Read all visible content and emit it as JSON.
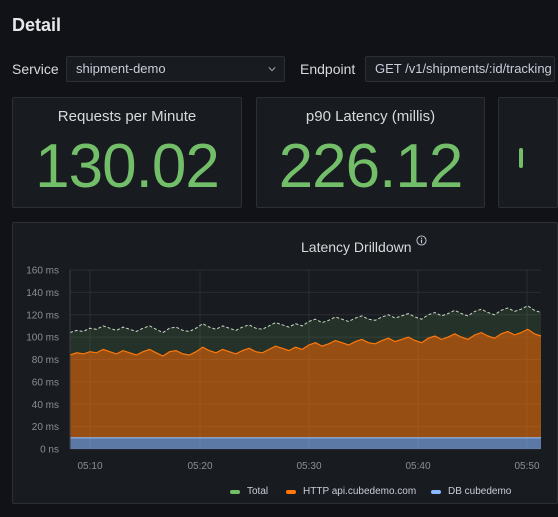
{
  "page": {
    "title": "Detail"
  },
  "filters": {
    "service_label": "Service",
    "service_value": "shipment-demo",
    "endpoint_label": "Endpoint",
    "endpoint_value": "GET /v1/shipments/:id/tracking"
  },
  "stats": [
    {
      "title": "Requests per Minute",
      "value": "130.02"
    },
    {
      "title": "p90 Latency (millis)",
      "value": "226.12"
    }
  ],
  "colors": {
    "stat_value": "#73bf69",
    "total": "#73bf69",
    "http": "#ff780a",
    "db": "#8ab8ff"
  },
  "chart": {
    "title": "Latency Drilldown",
    "info_icon": "info-circle-icon",
    "chart_data": {
      "type": "area",
      "title": "Latency Drilldown",
      "y_unit": "ms",
      "ylim": [
        0,
        160
      ],
      "y_ticks": [
        "0 ns",
        "20 ms",
        "40 ms",
        "60 ms",
        "80 ms",
        "100 ms",
        "120 ms",
        "140 ms",
        "160 ms"
      ],
      "x_ticks": [
        "05:10",
        "05:20",
        "05:30",
        "05:40",
        "05:50"
      ],
      "grid": true,
      "legend_placement": "bottom",
      "series": [
        {
          "name": "Total",
          "values": [
            104,
            106,
            105,
            108,
            107,
            110,
            108,
            106,
            109,
            107,
            105,
            108,
            110,
            107,
            104,
            108,
            109,
            106,
            105,
            108,
            112,
            109,
            107,
            110,
            108,
            106,
            109,
            111,
            108,
            107,
            110,
            113,
            111,
            109,
            112,
            110,
            114,
            116,
            113,
            115,
            118,
            116,
            114,
            117,
            119,
            116,
            115,
            118,
            120,
            117,
            119,
            121,
            118,
            116,
            120,
            122,
            119,
            121,
            124,
            121,
            119,
            123,
            125,
            122,
            120,
            124,
            126,
            123,
            125,
            128,
            124,
            122
          ]
        },
        {
          "name": "HTTP api.cubedemo.com",
          "values": [
            84,
            86,
            85,
            87,
            86,
            89,
            87,
            85,
            88,
            86,
            84,
            87,
            89,
            86,
            83,
            87,
            88,
            85,
            84,
            87,
            91,
            88,
            86,
            89,
            87,
            85,
            88,
            90,
            87,
            86,
            89,
            92,
            90,
            88,
            91,
            89,
            93,
            95,
            92,
            94,
            97,
            95,
            93,
            96,
            98,
            95,
            94,
            97,
            99,
            96,
            98,
            100,
            97,
            95,
            99,
            101,
            98,
            100,
            103,
            100,
            98,
            102,
            104,
            101,
            99,
            103,
            105,
            102,
            104,
            107,
            103,
            101
          ]
        },
        {
          "name": "DB cubedemo",
          "values": [
            10,
            10,
            10,
            10,
            10,
            10,
            10,
            10,
            10,
            10,
            10,
            10,
            10,
            10,
            10,
            10,
            10,
            10,
            10,
            10,
            10,
            10,
            10,
            10,
            10,
            10,
            10,
            10,
            10,
            10,
            10,
            10,
            10,
            10,
            10,
            10,
            10,
            10,
            10,
            10,
            10,
            10,
            10,
            10,
            10,
            10,
            10,
            10,
            10,
            10,
            10,
            10,
            10,
            10,
            10,
            10,
            10,
            10,
            10,
            10,
            10,
            10,
            10,
            10,
            10,
            10,
            10,
            10,
            10,
            10,
            10,
            10
          ]
        }
      ]
    }
  }
}
